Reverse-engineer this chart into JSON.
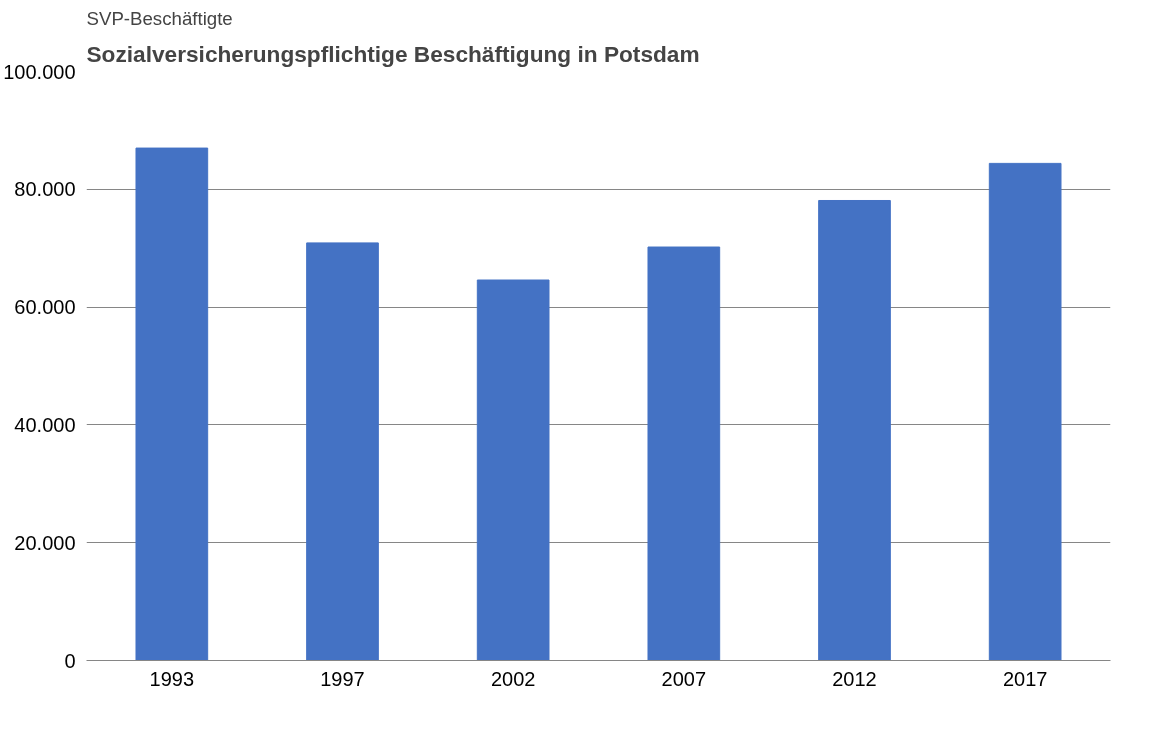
{
  "chart_data": {
    "type": "bar",
    "title": "Sozialversicherungspflichtige Beschäftigung in Potsdam",
    "ylabel": "SVP-Beschäftigte",
    "categories": [
      "1993",
      "1997",
      "2002",
      "2007",
      "2012",
      "2017"
    ],
    "values": [
      87000,
      70900,
      64600,
      70200,
      78100,
      84400
    ],
    "color": "#4472c4",
    "ylim": [
      0,
      100000
    ],
    "yticks": [
      {
        "value": 0,
        "label": "0"
      },
      {
        "value": 20000,
        "label": "20.000"
      },
      {
        "value": 40000,
        "label": "40.000"
      },
      {
        "value": 60000,
        "label": "60.000"
      },
      {
        "value": 80000,
        "label": "80.000"
      },
      {
        "value": 100000,
        "label": "100.000"
      }
    ],
    "grid": "y"
  }
}
